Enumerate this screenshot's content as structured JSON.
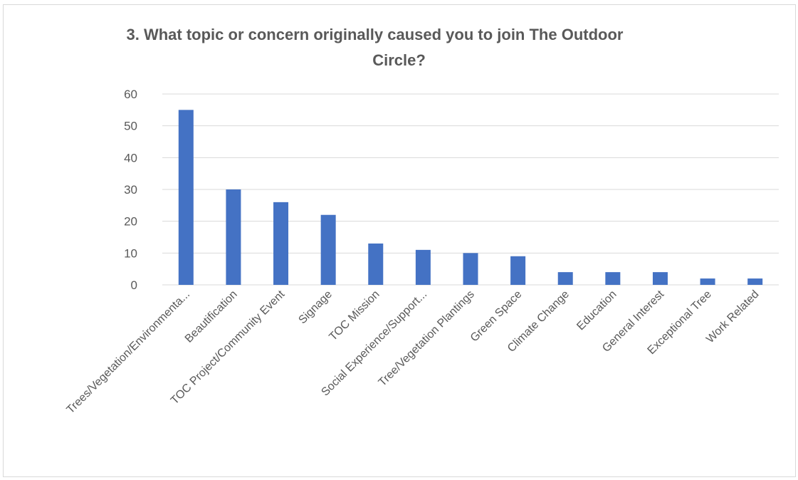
{
  "chart_data": {
    "type": "bar",
    "title": "3. What topic or concern originally caused you to join The Outdoor Circle?",
    "title_lines": [
      "3. What topic or concern originally caused you to join The Outdoor",
      "Circle?"
    ],
    "xlabel": "",
    "ylabel": "",
    "categories": [
      "Trees/Vegetation/Environmenta...",
      "Beautification",
      "TOC Project/Community Event",
      "Signage",
      "TOC Mission",
      "Social Experience/Support...",
      "Tree/Vegetation Plantings",
      "Green Space",
      "Climate Change",
      "Education",
      "General Interest",
      "Exceptional Tree",
      "Work Related"
    ],
    "values": [
      55,
      30,
      26,
      22,
      13,
      11,
      10,
      9,
      4,
      4,
      4,
      2,
      2
    ],
    "ylim": [
      0,
      60
    ],
    "yticks": [
      "0",
      "10",
      "20",
      "30",
      "40",
      "50",
      "60"
    ],
    "grid": true,
    "legend": "none",
    "bar_color": "#4472C4",
    "grid_color": "#d9d9d9",
    "text_color": "#595959"
  }
}
